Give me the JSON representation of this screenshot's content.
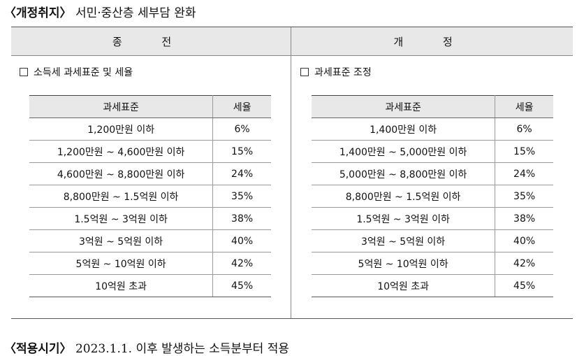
{
  "purpose": {
    "label": "〈개정취지〉",
    "text": " 서민·중산층 세부담 완화"
  },
  "columns": {
    "before": "종 전",
    "after": "개 정"
  },
  "before": {
    "check_label": "소득세 과세표준 및 세율",
    "headers": [
      "과세표준",
      "세율"
    ],
    "rows": [
      [
        "1,200만원 이하",
        "6%"
      ],
      [
        "1,200만원 ~ 4,600만원 이하",
        "15%"
      ],
      [
        "4,600만원 ~ 8,800만원 이하",
        "24%"
      ],
      [
        "8,800만원 ~ 1.5억원 이하",
        "35%"
      ],
      [
        "1.5억원 ~ 3억원 이하",
        "38%"
      ],
      [
        "3억원 ~ 5억원 이하",
        "40%"
      ],
      [
        "5억원 ~ 10억원 이하",
        "42%"
      ],
      [
        "10억원 초과",
        "45%"
      ]
    ]
  },
  "after": {
    "check_label": "과세표준 조정",
    "headers": [
      "과세표준",
      "세율"
    ],
    "rows": [
      [
        "1,400만원 이하",
        "6%"
      ],
      [
        "1,400만원 ~ 5,000만원 이하",
        "15%"
      ],
      [
        "5,000만원 ~ 8,800만원 이하",
        "24%"
      ],
      [
        "8,800만원 ~ 1.5억원 이하",
        "35%"
      ],
      [
        "1.5억원 ~ 3억원 이하",
        "38%"
      ],
      [
        "3억원 ~ 5억원 이하",
        "40%"
      ],
      [
        "5억원 ~ 10억원 이하",
        "42%"
      ],
      [
        "10억원 초과",
        "45%"
      ]
    ]
  },
  "apply": {
    "label": "〈적용시기〉",
    "text": " 2023.1.1. 이후 발생하는 소득분부터 적용"
  }
}
